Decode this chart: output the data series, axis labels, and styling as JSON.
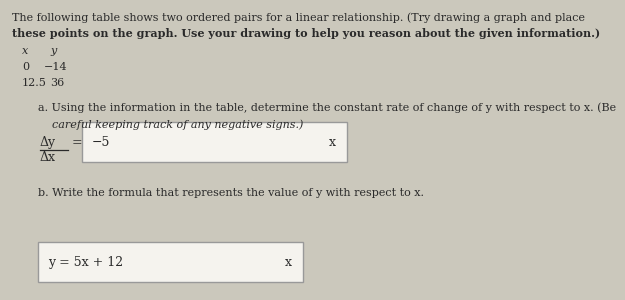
{
  "bg_color": "#cbc8bc",
  "title_line1": "The following table shows two ordered pairs for a linear relationship. (Try drawing a graph and place",
  "title_line2": "these points on the graph. Use your drawing to help you reason about the given information.)",
  "table_col1_header": "x",
  "table_col2_header": "y",
  "row1_x": "0",
  "row1_y": "−14",
  "row2_x": "12.5",
  "row2_y": "36",
  "part_a_line1": "a. Using the information in the table, determine the constant rate of change of y with respect to x. (Be",
  "part_a_line2": "careful keeping track of any negative signs.)",
  "delta_y": "Δy",
  "delta_x": "Δx",
  "equals": "=",
  "answer_a": "−5",
  "x_mark_a": "x",
  "part_b_line1": "b. Write the formula that represents the value of y with respect to x.",
  "answer_b": "y = 5x + 12",
  "x_mark_b": "x",
  "box_color": "#f5f3ee",
  "box_border": "#999999",
  "text_color": "#2a2a2a",
  "red_x_color": "#cc0000",
  "font_size_title": 8.0,
  "font_size_body": 8.0,
  "font_size_math": 9.0
}
